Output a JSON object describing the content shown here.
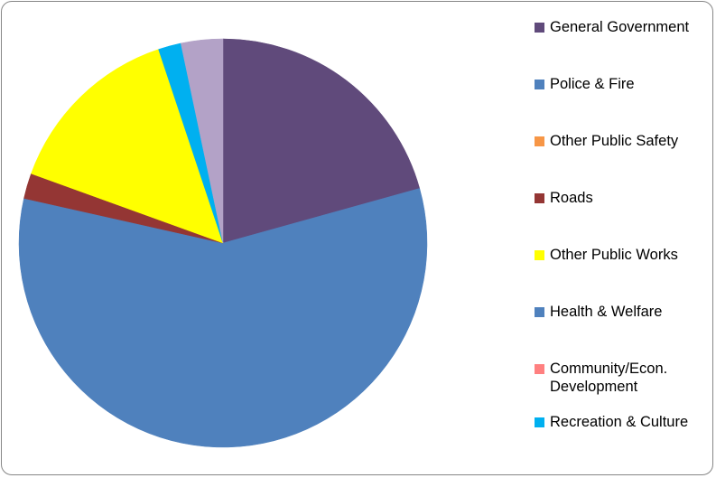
{
  "chart_data": {
    "type": "pie",
    "title": "",
    "legend_position": "right",
    "start_angle": "12 o'clock",
    "direction": "clockwise",
    "slices": [
      {
        "name": "General Government",
        "value": 20.6,
        "color": "#604A7B"
      },
      {
        "name": "Police & Fire",
        "value": 57.6,
        "color": "#4F81BD"
      },
      {
        "name": "Other Public Safety",
        "value": 0.0,
        "color": "#F79646"
      },
      {
        "name": "Roads",
        "value": 2.0,
        "color": "#943634"
      },
      {
        "name": "Other Public Works",
        "value": 14.3,
        "color": "#FFFF00"
      },
      {
        "name": "Health & Welfare",
        "value": 0.0,
        "color": "#4F81BD"
      },
      {
        "name": "Community/Econ. Development",
        "value": 0.0,
        "color": "#FF8080"
      },
      {
        "name": "Recreation & Culture",
        "value": 1.8,
        "color": "#00B0F0"
      },
      {
        "name": "",
        "value": 3.3,
        "color": "#B3A2C7"
      }
    ]
  },
  "legend": {
    "items": [
      {
        "label": "General Government",
        "color": "#604A7B"
      },
      {
        "label": "Police & Fire",
        "color": "#4F81BD"
      },
      {
        "label": "Other Public Safety",
        "color": "#F79646"
      },
      {
        "label": "Roads",
        "color": "#943634"
      },
      {
        "label": "Other Public Works",
        "color": "#FFFF00"
      },
      {
        "label": "Health & Welfare",
        "color": "#4F81BD"
      },
      {
        "label": "Community/Econ. Development",
        "color": "#FF8080"
      },
      {
        "label": "Recreation & Culture",
        "color": "#00B0F0"
      }
    ]
  }
}
